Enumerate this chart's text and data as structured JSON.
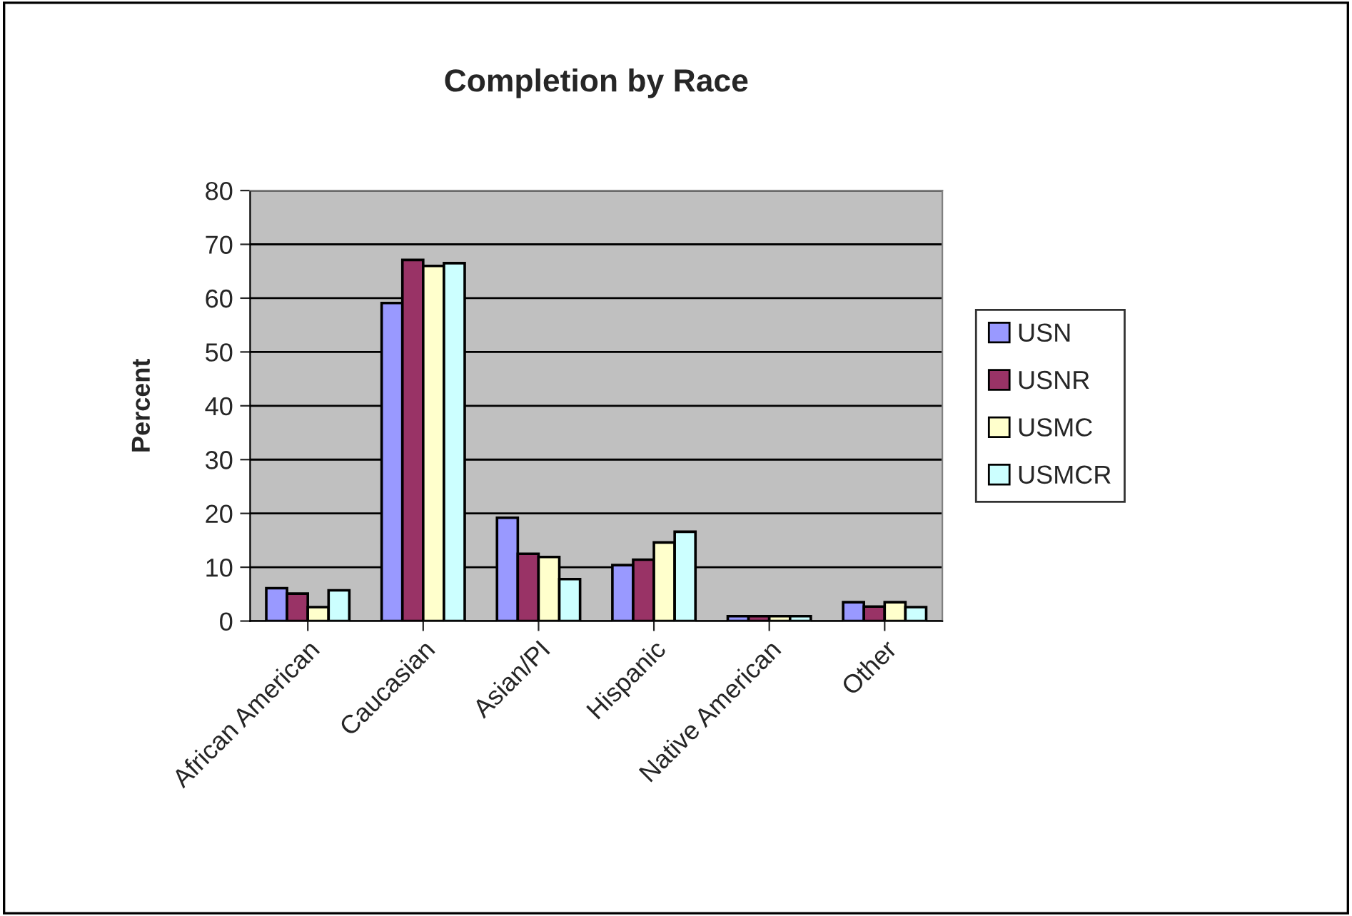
{
  "chart_data": {
    "type": "bar",
    "title": "Completion by Race",
    "ylabel": "Percent",
    "categories": [
      "African American",
      "Caucasian",
      "Asian/PI",
      "Hispanic",
      "Native American",
      "Other"
    ],
    "series": [
      {
        "name": "USN",
        "color": "#9999ff",
        "values": [
          6.1,
          59.1,
          19.2,
          10.4,
          0.9,
          3.5
        ]
      },
      {
        "name": "USNR",
        "color": "#993366",
        "values": [
          5.1,
          67.1,
          12.5,
          11.4,
          0.9,
          2.7
        ]
      },
      {
        "name": "USMC",
        "color": "#ffffcc",
        "values": [
          2.6,
          66.0,
          11.9,
          14.6,
          0.9,
          3.5
        ]
      },
      {
        "name": "USMCR",
        "color": "#ccffff",
        "values": [
          5.7,
          66.5,
          7.8,
          16.6,
          0.9,
          2.6
        ]
      }
    ],
    "ylim": [
      0,
      80
    ],
    "yticks": [
      0,
      10,
      20,
      30,
      40,
      50,
      60,
      70,
      80
    ],
    "grid": "y",
    "legend": "right"
  }
}
